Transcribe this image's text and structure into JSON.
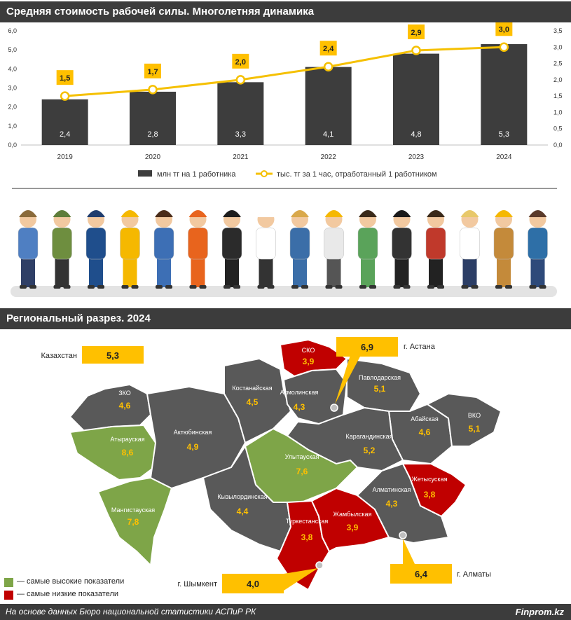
{
  "section1": {
    "title": "Средняя стоимость рабочей силы. Многолетняя динамика"
  },
  "section2": {
    "title": "Региональный разрез. 2024"
  },
  "colors": {
    "bar": "#3d3d3d",
    "line": "#f5c000",
    "accent": "#ffc000",
    "high": "#7ea548",
    "low": "#c00000",
    "region": "#595959"
  },
  "chart_data": {
    "type": "bar",
    "categories": [
      "2019",
      "2020",
      "2021",
      "2022",
      "2023",
      "2024"
    ],
    "series": [
      {
        "name": "млн тг на 1 работника",
        "type": "bar",
        "axis": "left",
        "values": [
          2.4,
          2.8,
          3.3,
          4.1,
          4.8,
          5.3
        ],
        "labels": [
          "2,4",
          "2,8",
          "3,3",
          "4,1",
          "4,8",
          "5,3"
        ]
      },
      {
        "name": "тыс. тг за 1 час, отработанный 1 работником",
        "type": "line",
        "axis": "right",
        "values": [
          1.5,
          1.7,
          2.0,
          2.4,
          2.9,
          3.0
        ],
        "labels": [
          "1,5",
          "1,7",
          "2,0",
          "2,4",
          "2,9",
          "3,0"
        ]
      }
    ],
    "ylim_left": [
      0,
      6
    ],
    "ylim_right": [
      0,
      3.5
    ],
    "left_ticks": [
      "0,0",
      "1,0",
      "2,0",
      "3,0",
      "4,0",
      "5,0",
      "6,0"
    ],
    "right_ticks": [
      "0,0",
      "0,5",
      "1,0",
      "1,5",
      "2,0",
      "2,5",
      "3,0",
      "3,5"
    ],
    "legend_position": "bottom"
  },
  "map": {
    "kazakhstan": {
      "label": "Казахстан",
      "value": "5,3"
    },
    "regions": [
      {
        "name": "СКО",
        "value": "3,9",
        "status": "low"
      },
      {
        "name": "Костанайская",
        "value": "4,5",
        "status": "normal"
      },
      {
        "name": "Акмолинская",
        "value": "4,3",
        "status": "normal"
      },
      {
        "name": "Павлодарская",
        "value": "5,1",
        "status": "normal"
      },
      {
        "name": "ЗКО",
        "value": "4,6",
        "status": "normal"
      },
      {
        "name": "Актюбинская",
        "value": "4,9",
        "status": "normal"
      },
      {
        "name": "Атырауская",
        "value": "8,6",
        "status": "high"
      },
      {
        "name": "Абайская",
        "value": "4,6",
        "status": "normal"
      },
      {
        "name": "ВКО",
        "value": "5,1",
        "status": "normal"
      },
      {
        "name": "Карагандинская",
        "value": "5,2",
        "status": "normal"
      },
      {
        "name": "Улытауская",
        "value": "7,6",
        "status": "high"
      },
      {
        "name": "Жетысуская",
        "value": "3,8",
        "status": "low"
      },
      {
        "name": "Мангистауская",
        "value": "7,8",
        "status": "high"
      },
      {
        "name": "Кызылординская",
        "value": "4,4",
        "status": "normal"
      },
      {
        "name": "Алматинская",
        "value": "4,3",
        "status": "normal"
      },
      {
        "name": "Туркестанская",
        "value": "3,8",
        "status": "low"
      },
      {
        "name": "Жамбылская",
        "value": "3,9",
        "status": "low"
      }
    ],
    "cities": [
      {
        "name": "г. Астана",
        "value": "6,9"
      },
      {
        "name": "г. Шымкент",
        "value": "4,0"
      },
      {
        "name": "г. Алматы",
        "value": "6,4"
      }
    ],
    "legend": {
      "high": "— самые высокие показатели",
      "low": "— самые низкие показатели"
    }
  },
  "footer": {
    "source": "На основе данных Бюро национальной статистики АСПиР РК",
    "brand": "Finprom.kz"
  }
}
